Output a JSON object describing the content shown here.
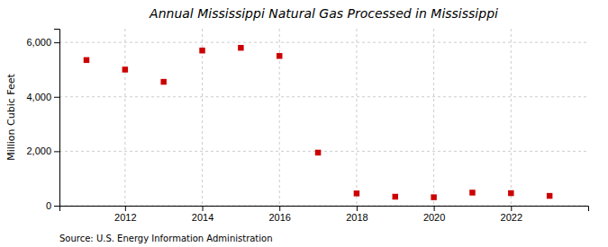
{
  "chart_data": {
    "type": "scatter",
    "title": "Annual Mississippi Natural Gas Processed in Mississippi",
    "ylabel": "Million Cubic Feet",
    "annotations": [
      "Source: U.S. Energy Information Administration"
    ],
    "x": [
      2011,
      2012,
      2013,
      2014,
      2015,
      2016,
      2017,
      2018,
      2019,
      2020,
      2021,
      2022,
      2023
    ],
    "values": [
      5350,
      5000,
      4550,
      5700,
      5800,
      5500,
      1950,
      450,
      330,
      310,
      480,
      460,
      360
    ],
    "color": "#cc0000",
    "marker": "square",
    "xlim": [
      2010.3,
      2024.0
    ],
    "xticks": [
      2012,
      2014,
      2016,
      2018,
      2020,
      2022
    ],
    "ylim": [
      0,
      6500
    ],
    "yticks": [
      0,
      {
        "value": 2000,
        "label": "2,000"
      },
      {
        "value": 4000,
        "label": "4,000"
      },
      {
        "value": 6000,
        "label": "6,000"
      }
    ],
    "grid": true
  }
}
